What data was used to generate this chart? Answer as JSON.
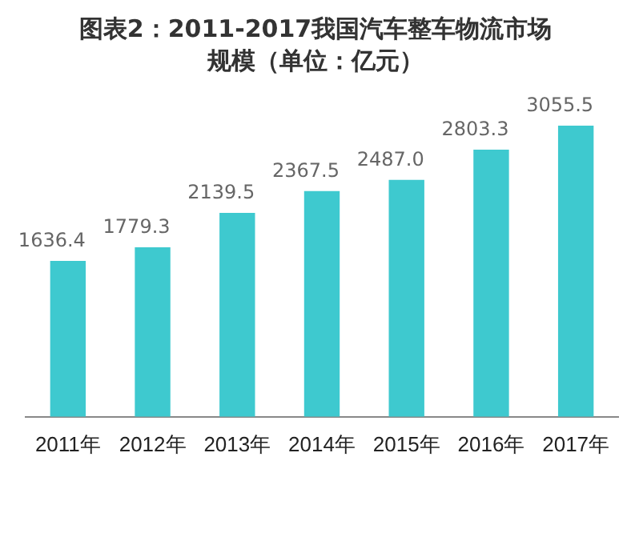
{
  "chart_data": {
    "type": "bar",
    "title": "图表2：2011-2017我国汽车整车物流市场规模（单位：亿元）",
    "categories": [
      "2011年",
      "2012年",
      "2013年",
      "2014年",
      "2015年",
      "2016年",
      "2017年"
    ],
    "values": [
      1636.4,
      1779.3,
      2139.5,
      2367.5,
      2487.0,
      2803.3,
      3055.5
    ],
    "value_labels": [
      "1636.4",
      "1779.3",
      "2139.5",
      "2367.5",
      "2487.0",
      "2803.3",
      "3055.5"
    ],
    "color": "#3ec9cf",
    "relative": false,
    "grid": false,
    "legend": false
  }
}
